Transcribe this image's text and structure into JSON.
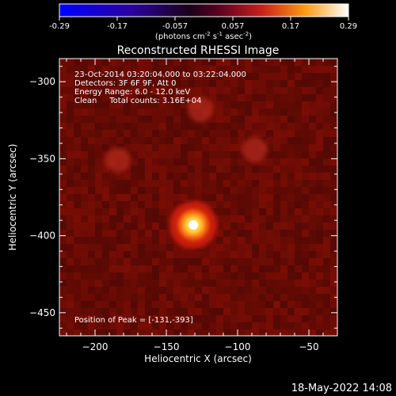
{
  "chart_data": {
    "type": "heatmap",
    "title": "Reconstructed RHESSI Image",
    "xlabel": "Heliocentric X (arcsec)",
    "ylabel": "Heliocentric Y (arcsec)",
    "xlim": [
      -225,
      -30
    ],
    "ylim": [
      -465,
      -285
    ],
    "xticks": [
      -200,
      -150,
      -100,
      -50
    ],
    "yticks": [
      -300,
      -350,
      -400,
      -450
    ],
    "colorbar": {
      "min": -0.29,
      "max": 0.29,
      "ticks": [
        "-0.29",
        "-0.17",
        "-0.057",
        "0.057",
        "0.17",
        "0.29"
      ],
      "unit_main": "(photons cm",
      "unit_sup1": "-2",
      "unit_mid": " s",
      "unit_sup2": "-1",
      "unit_end": " asec",
      "unit_sup3": "-2",
      "unit_close": ")"
    },
    "annotations": [
      "23-Oct-2014 03:20:04.000 to 03:22:04.000",
      "Detectors: 3F 6F 9F, Att 0",
      "Energy Range: 6.0 - 12.0 keV",
      "Clean     Total counts: 3.16E+04"
    ],
    "peak_label": "Position of Peak = [-131,-393]",
    "peak": [
      -131,
      -393
    ],
    "sources": [
      {
        "x": -131,
        "y": -393,
        "intensity": 0.29
      },
      {
        "x": -126,
        "y": -318,
        "intensity": 0.12
      },
      {
        "x": -88,
        "y": -344,
        "intensity": 0.11
      },
      {
        "x": -184,
        "y": -351,
        "intensity": 0.1
      }
    ],
    "grid": false
  },
  "timestamp": "18-May-2022 14:08"
}
